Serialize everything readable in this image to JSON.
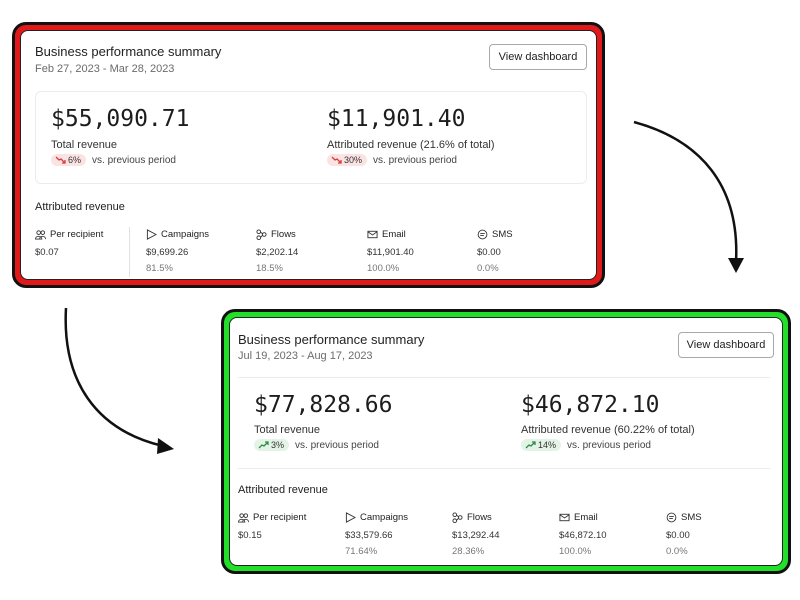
{
  "before": {
    "title": "Business performance summary",
    "date_range": "Feb 27, 2023 - Mar 28, 2023",
    "button_label": "View dashboard",
    "total_revenue": {
      "value": "$55,090.71",
      "label": "Total revenue",
      "change": "6%",
      "direction": "down",
      "suffix": "vs. previous period"
    },
    "attributed_revenue": {
      "value": "$11,901.40",
      "label": "Attributed revenue (21.6% of total)",
      "change": "30%",
      "direction": "down",
      "suffix": "vs. previous period"
    },
    "section_title": "Attributed revenue",
    "columns": [
      {
        "icon": "people-icon",
        "label": "Per recipient",
        "value": "$0.07",
        "percent": ""
      },
      {
        "icon": "send-icon",
        "label": "Campaigns",
        "value": "$9,699.26",
        "percent": "81.5%"
      },
      {
        "icon": "flows-icon",
        "label": "Flows",
        "value": "$2,202.14",
        "percent": "18.5%"
      },
      {
        "icon": "mail-icon",
        "label": "Email",
        "value": "$11,901.40",
        "percent": "100.0%"
      },
      {
        "icon": "sms-icon",
        "label": "SMS",
        "value": "$0.00",
        "percent": "0.0%"
      }
    ]
  },
  "after": {
    "title": "Business performance summary",
    "date_range": "Jul 19, 2023 - Aug 17, 2023",
    "button_label": "View dashboard",
    "total_revenue": {
      "value": "$77,828.66",
      "label": "Total revenue",
      "change": "3%",
      "direction": "up",
      "suffix": "vs. previous period"
    },
    "attributed_revenue": {
      "value": "$46,872.10",
      "label": "Attributed revenue (60.22% of total)",
      "change": "14%",
      "direction": "up",
      "suffix": "vs. previous period"
    },
    "section_title": "Attributed revenue",
    "columns": [
      {
        "icon": "people-icon",
        "label": "Per recipient",
        "value": "$0.15",
        "percent": ""
      },
      {
        "icon": "send-icon",
        "label": "Campaigns",
        "value": "$33,579.66",
        "percent": "71.64%"
      },
      {
        "icon": "flows-icon",
        "label": "Flows",
        "value": "$13,292.44",
        "percent": "28.36%"
      },
      {
        "icon": "mail-icon",
        "label": "Email",
        "value": "$46,872.10",
        "percent": "100.0%"
      },
      {
        "icon": "sms-icon",
        "label": "SMS",
        "value": "$0.00",
        "percent": "0.0%"
      }
    ]
  },
  "colors": {
    "before_frame": "#e01a1a",
    "after_frame": "#22e02a",
    "trend_down": "#d63b3b",
    "trend_up": "#2f8a45"
  }
}
